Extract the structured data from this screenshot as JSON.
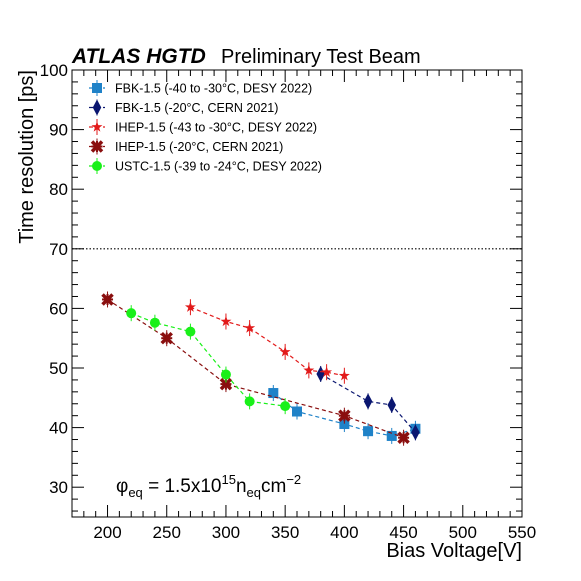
{
  "chart_data": {
    "type": "scatter",
    "experiment_label": "ATLAS HGTD",
    "title": "Preliminary Test Beam",
    "xlabel": "Bias Voltage[V]",
    "ylabel": "Time resolution [ps]",
    "xlim": [
      170,
      550
    ],
    "ylim": [
      25,
      100
    ],
    "x_major_ticks": [
      200,
      250,
      300,
      350,
      400,
      450,
      500,
      550
    ],
    "y_major_ticks": [
      30,
      40,
      50,
      60,
      70,
      80,
      90,
      100
    ],
    "grid": false,
    "legend_position": "top-left",
    "reference_line": {
      "y": 70,
      "style": "dotted"
    },
    "annotation": {
      "symbol": "φ",
      "sub1": "eq",
      "mid": " = 1.5x10",
      "sup1": "15",
      "mid2": "n",
      "sub2": "eq",
      "mid3": "cm",
      "sup2": "−2"
    },
    "series": [
      {
        "name": "FBK-1.5 (-40 to -30°C, DESY 2022)",
        "color": "#1f82c8",
        "marker": "square",
        "x": [
          340,
          360,
          400,
          420,
          440,
          460
        ],
        "y": [
          45.8,
          42.7,
          40.6,
          39.4,
          38.6,
          39.8
        ]
      },
      {
        "name": "FBK-1.5 (-20°C, CERN 2021)",
        "color": "#0a1670",
        "marker": "diamond",
        "x": [
          380,
          420,
          440,
          460
        ],
        "y": [
          49.0,
          44.4,
          43.8,
          39.2
        ]
      },
      {
        "name": "IHEP-1.5 (-43 to -30°C, DESY 2022)",
        "color": "#e21a1a",
        "marker": "star",
        "x": [
          270,
          300,
          320,
          350,
          370,
          385,
          400
        ],
        "y": [
          60.2,
          57.8,
          56.7,
          52.7,
          49.6,
          49.3,
          48.7
        ]
      },
      {
        "name": "IHEP-1.5 (-20°C, CERN 2021)",
        "color": "#8a0f0f",
        "marker": "cross",
        "x": [
          200,
          250,
          300,
          400,
          450
        ],
        "y": [
          61.5,
          55.0,
          47.3,
          42.0,
          38.3
        ]
      },
      {
        "name": "USTC-1.5 (-39 to -24°C, DESY 2022)",
        "color": "#19f019",
        "marker": "circle",
        "x": [
          220,
          240,
          270,
          300,
          320,
          350
        ],
        "y": [
          59.2,
          57.6,
          56.1,
          48.9,
          44.4,
          43.6
        ]
      }
    ]
  }
}
